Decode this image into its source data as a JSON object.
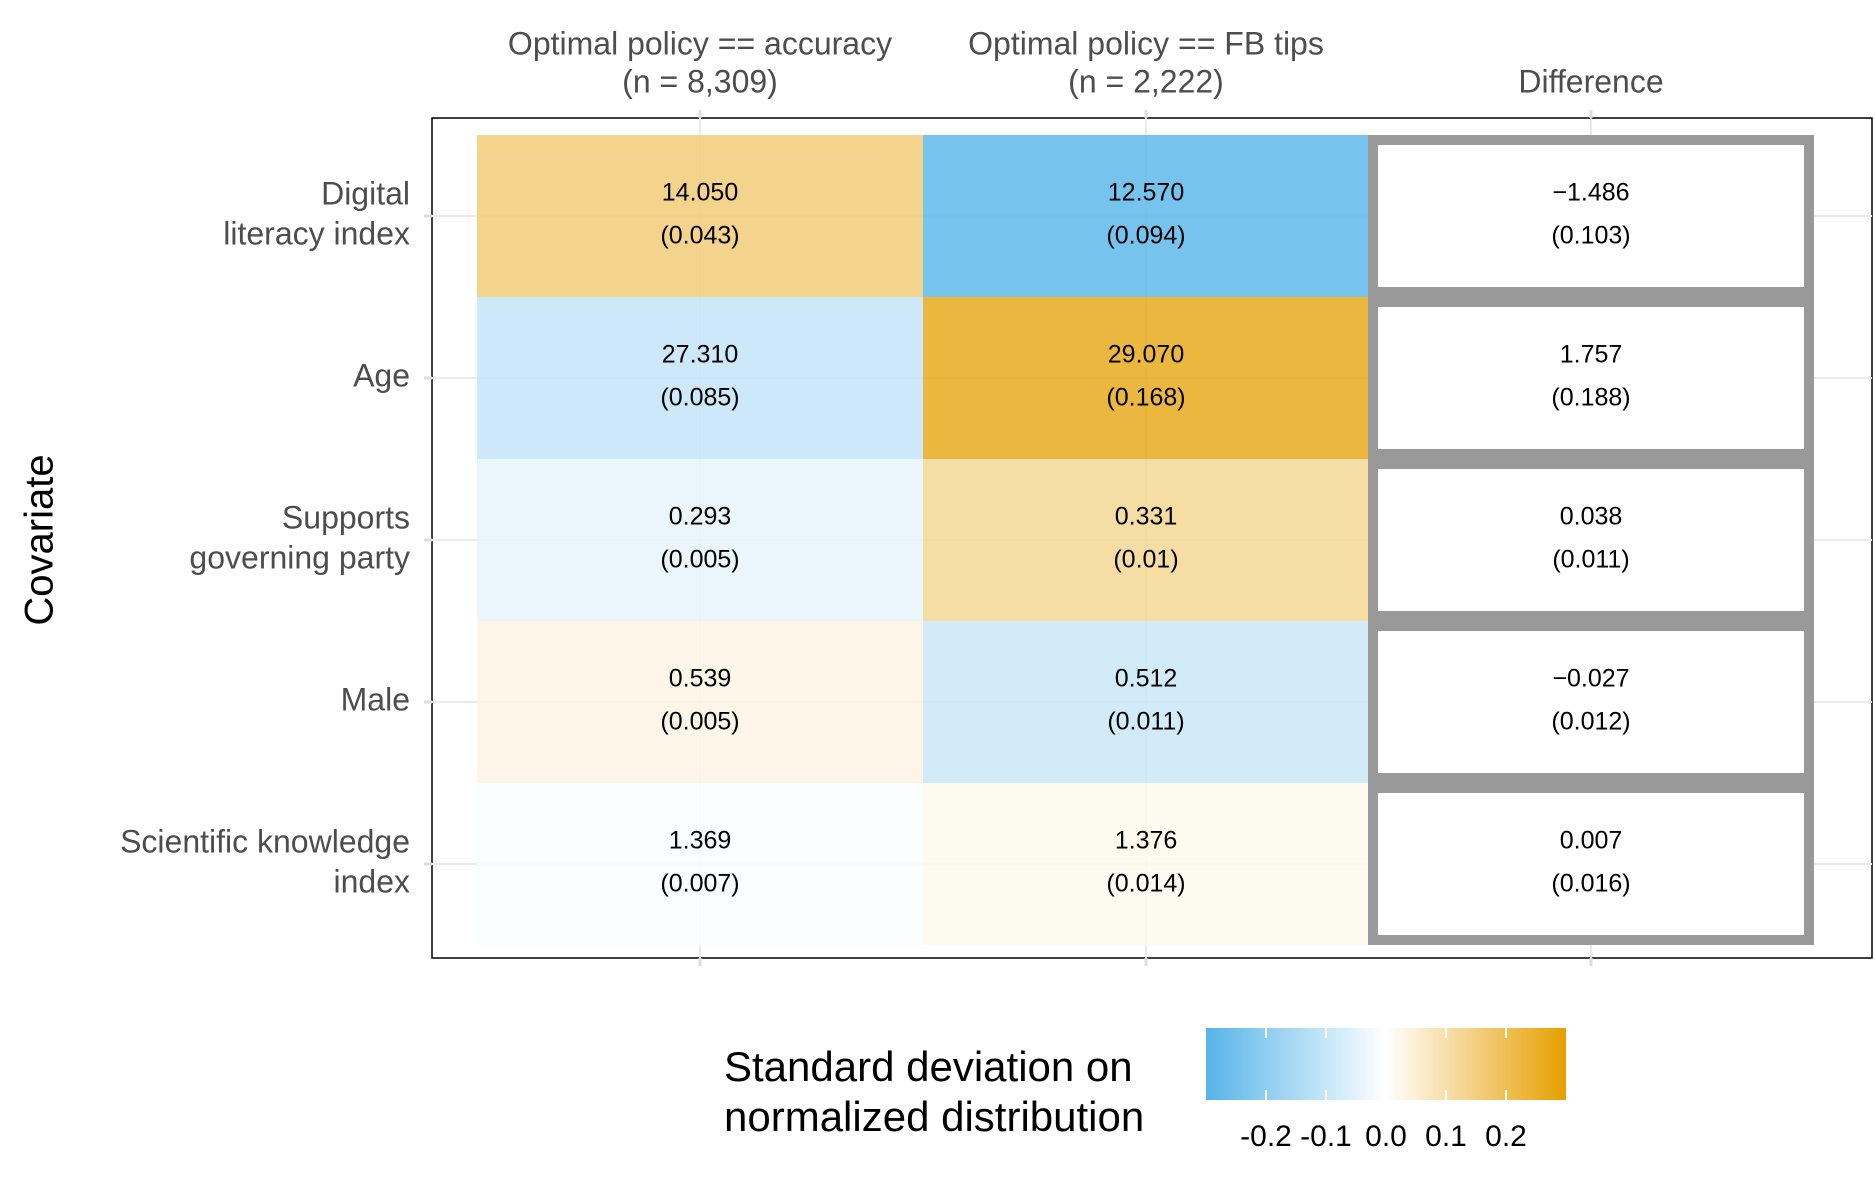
{
  "chart_data": {
    "type": "heatmap",
    "y_label": "Covariate",
    "columns": [
      [
        "Optimal policy == accuracy",
        "(n = 8,309)"
      ],
      [
        "Optimal policy == FB tips",
        "(n = 2,222)"
      ],
      [
        "Difference"
      ]
    ],
    "rows": [
      [
        "Digital",
        "literacy index"
      ],
      [
        "Age"
      ],
      [
        "Supports",
        "governing party"
      ],
      [
        "Male"
      ],
      [
        "Scientific knowledge",
        "index"
      ]
    ],
    "means": [
      [
        "14.050",
        "12.570",
        "−1.486"
      ],
      [
        "27.310",
        "29.070",
        "1.757"
      ],
      [
        "0.293",
        "0.331",
        "0.038"
      ],
      [
        "0.539",
        "0.512",
        "−0.027"
      ],
      [
        "1.369",
        "1.376",
        "0.007"
      ]
    ],
    "ses": [
      [
        "(0.043)",
        "(0.094)",
        "(0.103)"
      ],
      [
        "(0.085)",
        "(0.168)",
        "(0.188)"
      ],
      [
        "(0.005)",
        "(0.01)",
        "(0.011)"
      ],
      [
        "(0.005)",
        "(0.011)",
        "(0.012)"
      ],
      [
        "(0.007)",
        "(0.014)",
        "(0.016)"
      ]
    ],
    "color_values": [
      [
        0.15,
        -0.27
      ],
      [
        -0.1,
        0.25
      ],
      [
        -0.04,
        0.12
      ],
      [
        0.03,
        -0.09
      ],
      [
        -0.01,
        0.02
      ]
    ],
    "legend_title": [
      "Standard deviation on",
      "normalized distribution"
    ],
    "legend_lim": [
      -0.3,
      0.3
    ],
    "legend_ticks": [
      -0.2,
      -0.1,
      {
        "value": 0,
        "label": "0.0"
      },
      0.1,
      0.2
    ],
    "colors": {
      "low": "#56b4e9",
      "mid": "#ffffff",
      "high": "#e69f00"
    }
  }
}
